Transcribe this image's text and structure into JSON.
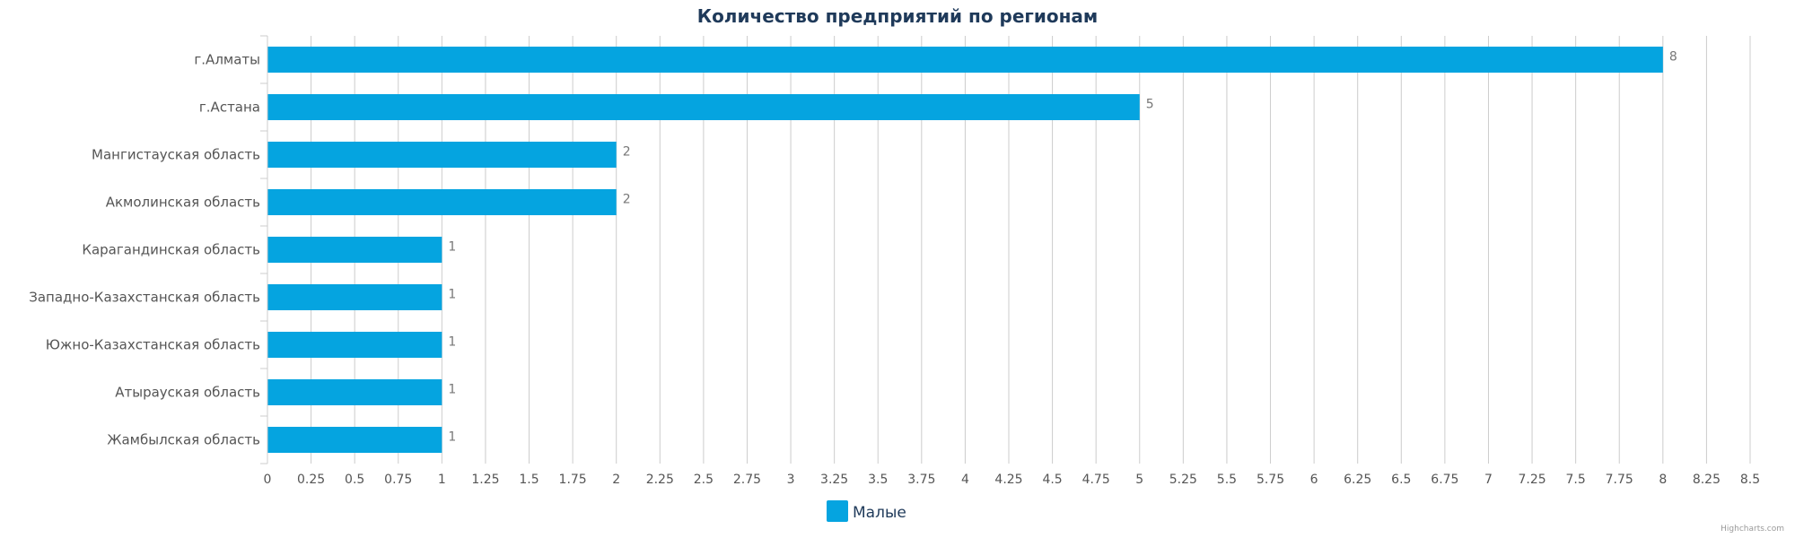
{
  "chart_data": {
    "type": "bar",
    "orientation": "horizontal",
    "title": "Количество предприятий по регионам",
    "categories": [
      "г.Алматы",
      "г.Астана",
      "Мангистауская область",
      "Акмолинская область",
      "Карагандинская область",
      "Западно-Казахстанская область",
      "Южно-Казахстанская область",
      "Атырауская область",
      "Жамбылская область"
    ],
    "series": [
      {
        "name": "Малые",
        "values": [
          8,
          5,
          2,
          2,
          1,
          1,
          1,
          1,
          1
        ],
        "color": "#05a4e0"
      }
    ],
    "xlim": [
      0,
      8.5
    ],
    "tick_interval": 0.25,
    "tick_labels": [
      "0",
      "0.25",
      "0.5",
      "0.75",
      "1",
      "1.25",
      "1.5",
      "1.75",
      "2",
      "2.25",
      "2.5",
      "2.75",
      "3",
      "3.25",
      "3.5",
      "3.75",
      "4",
      "4.25",
      "4.5",
      "4.75",
      "5",
      "5.25",
      "5.5",
      "5.75",
      "6",
      "6.25",
      "6.5",
      "6.75",
      "7",
      "7.25",
      "7.5",
      "7.75",
      "8",
      "8.25",
      "8.5"
    ],
    "grid": true,
    "legend_position": "bottom-center",
    "data_labels": true
  },
  "credits": "Highcharts.com",
  "colors": {
    "bar": "#05a4e0",
    "grid": "#cccccc",
    "title": "#1f3a5a"
  }
}
